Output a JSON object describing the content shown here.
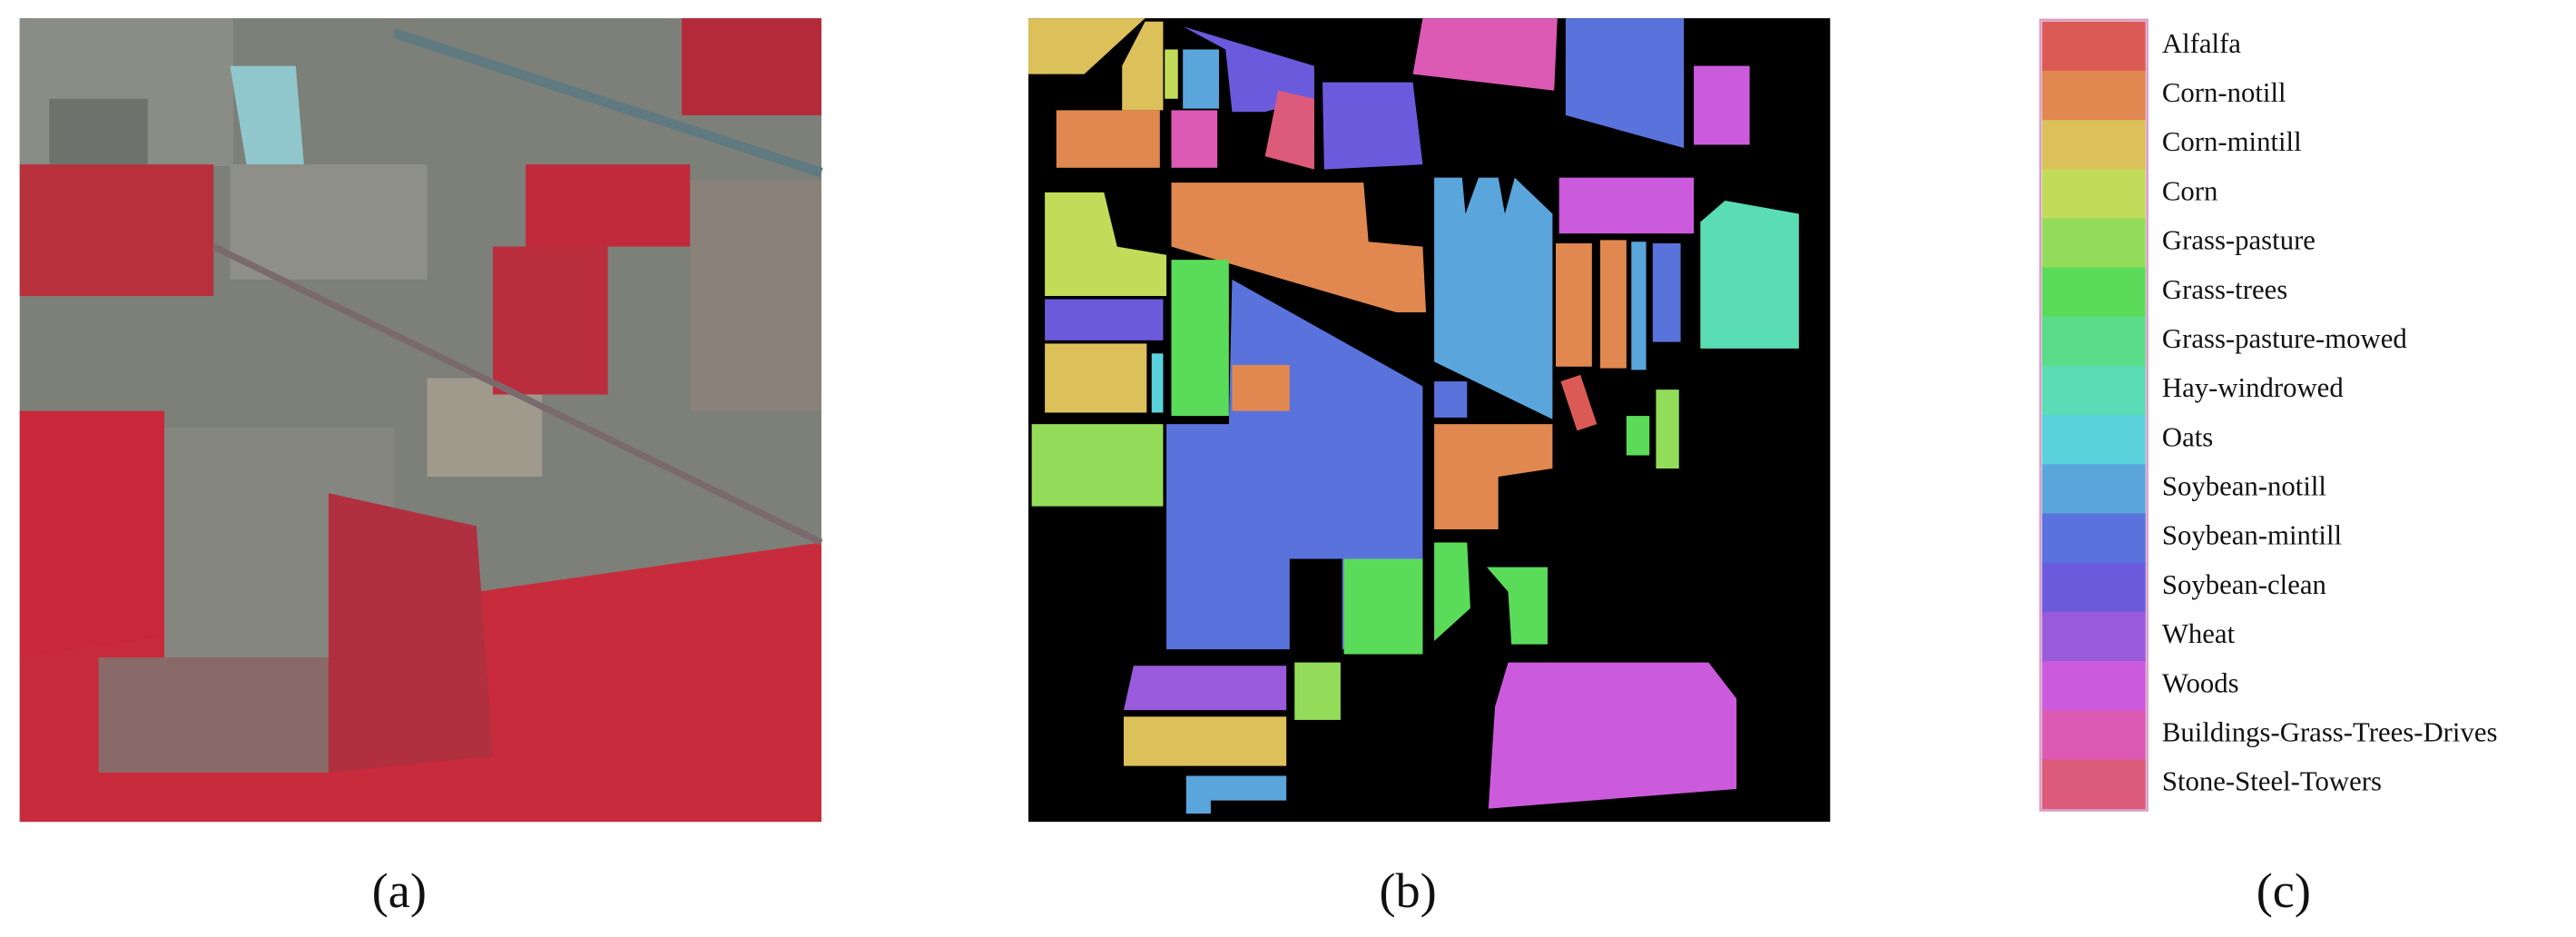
{
  "captions": [
    "(a)",
    "(b)",
    "(c)"
  ],
  "legend": {
    "items": [
      {
        "label": "Alfalfa",
        "color": "#dc5a55"
      },
      {
        "label": "Corn-notill",
        "color": "#e0884f"
      },
      {
        "label": "Corn-mintill",
        "color": "#dcc05a"
      },
      {
        "label": "Corn",
        "color": "#c2dc5a"
      },
      {
        "label": "Grass-pasture",
        "color": "#93dc5a"
      },
      {
        "label": "Grass-trees",
        "color": "#5adc5a"
      },
      {
        "label": "Grass-pasture-mowed",
        "color": "#5adc88"
      },
      {
        "label": "Hay-windrowed",
        "color": "#5adcb4"
      },
      {
        "label": "Oats",
        "color": "#5ad2dc"
      },
      {
        "label": "Soybean-notill",
        "color": "#5aa5dc"
      },
      {
        "label": "Soybean-mintill",
        "color": "#5a72dc"
      },
      {
        "label": "Soybean-clean",
        "color": "#6c5adc"
      },
      {
        "label": "Wheat",
        "color": "#9a5adc"
      },
      {
        "label": "Woods",
        "color": "#cc5adc"
      },
      {
        "label": "Buildings-Grass-Trees-Drives",
        "color": "#dc5ab4"
      },
      {
        "label": "Stone-Steel-Towers",
        "color": "#dc5a7a"
      }
    ]
  }
}
